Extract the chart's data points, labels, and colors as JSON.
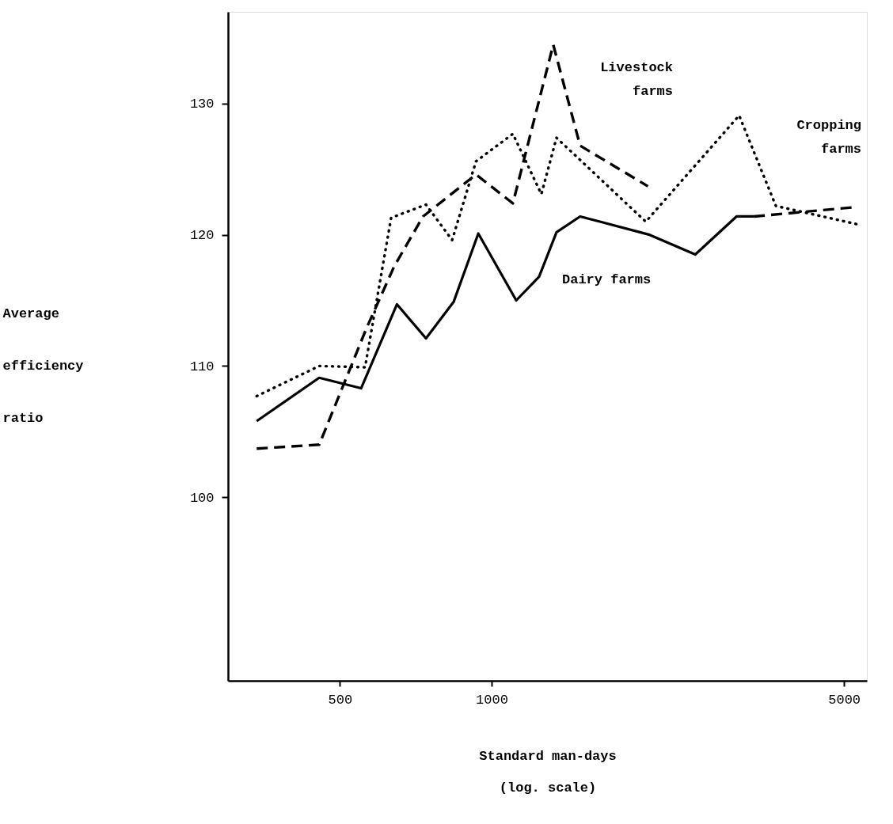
{
  "chart_data": {
    "type": "line",
    "xlabel": "Standard man-days\n(log. scale)",
    "ylabel": "Average efficiency ratio",
    "log": "x",
    "xlim": [
      300,
      5550
    ],
    "xticks": [
      500,
      1000,
      5000
    ],
    "ylim": [
      86,
      137
    ],
    "yticks": [
      100,
      110,
      120,
      130
    ],
    "grid": false,
    "marker": "none",
    "series": [
      {
        "name": "Dairy farms",
        "color": "#000000",
        "line_style": "solid",
        "x": [
          342,
          455,
          551,
          649,
          741,
          841,
          941,
          1119,
          1242,
          1345,
          1498,
          2058,
          2535,
          3060,
          3311
        ],
        "values": [
          105.8,
          109.1,
          108.3,
          114.7,
          112.1,
          114.9,
          120.1,
          115.0,
          116.8,
          120.2,
          121.4,
          120.0,
          118.5,
          121.4,
          121.4
        ]
      },
      {
        "name": "Livestock farms",
        "color": "#000000",
        "line_style": "dashed",
        "x": [
          342,
          455,
          565,
          641,
          731,
          931,
          1102,
          1325,
          1498,
          2042
        ],
        "values": [
          103.7,
          104.0,
          112.9,
          117.6,
          121.4,
          124.6,
          122.4,
          134.5,
          126.8,
          123.7
        ]
      },
      {
        "name": "Cropping farms",
        "color": "#000000",
        "line_style": "dotted",
        "x": [
          342,
          455,
          561,
          632,
          741,
          835,
          931,
          1102,
          1255,
          1345,
          2022,
          3097,
          3663,
          5320
        ],
        "values": [
          107.7,
          110.0,
          109.9,
          121.3,
          122.3,
          119.6,
          125.6,
          127.7,
          123.1,
          127.4,
          121.0,
          129.1,
          122.2,
          120.8
        ]
      },
      {
        "color": "#000000",
        "line_style": "dashed",
        "x": [
          3311,
          5224
        ],
        "values": [
          121.4,
          122.1
        ]
      }
    ]
  }
}
